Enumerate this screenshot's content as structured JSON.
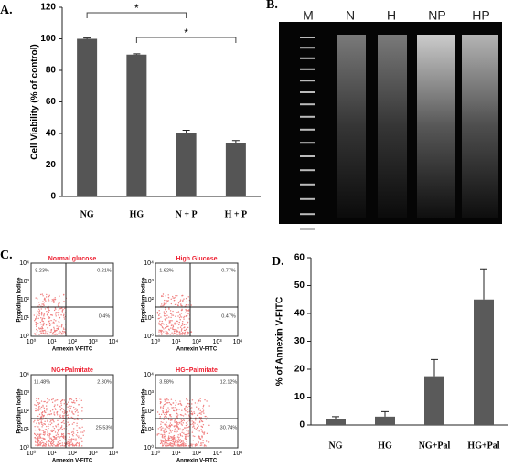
{
  "chart_data": [
    {
      "type": "bar",
      "panel_label": "A.",
      "ylabel": "Cell Viability (% of control)",
      "categories": [
        "NG",
        "HG",
        "N + P",
        "H + P"
      ],
      "values": [
        100,
        90,
        40,
        34
      ],
      "errors": [
        0.5,
        0.5,
        2,
        1.5
      ],
      "ylim": [
        0,
        120
      ],
      "yticks": [
        0,
        20,
        40,
        60,
        80,
        100,
        120
      ],
      "color": "#555555",
      "annotations": [
        "*",
        "*"
      ]
    },
    {
      "type": "bar",
      "panel_label": "D.",
      "ylabel": "% of Annexin V-FITC",
      "categories": [
        "NG",
        "HG",
        "NG+Pal",
        "HG+Pal"
      ],
      "values": [
        2,
        3,
        17.5,
        45
      ],
      "errors": [
        1,
        1.8,
        6,
        11
      ],
      "ylim": [
        0,
        60
      ],
      "yticks": [
        0,
        10,
        20,
        30,
        40,
        50,
        60
      ],
      "color": "#5a5a5a"
    }
  ],
  "gel": {
    "panel_label": "B.",
    "lanes": [
      "M",
      "N",
      "H",
      "NP",
      "HP"
    ]
  },
  "flow": {
    "panel_label": "C.",
    "xlabel": "Annexin V-FITC",
    "ylabel": "Propidium Iodide",
    "ticks": [
      "10⁰",
      "10¹",
      "10²",
      "10³",
      "10⁴"
    ],
    "plots": [
      {
        "title": "Normal glucose",
        "quadrants": [
          "8.23%",
          "0.21%",
          "0.4%"
        ]
      },
      {
        "title": "High Glucose",
        "quadrants": [
          "1.62%",
          "0.77%",
          "0.47%"
        ]
      },
      {
        "title": "NG+Palmitate",
        "quadrants": [
          "11.48%",
          "2.30%",
          "25.53%"
        ]
      },
      {
        "title": "HG+Palmitate",
        "quadrants": [
          "3.58%",
          "12.12%",
          "30.74%"
        ]
      }
    ]
  }
}
